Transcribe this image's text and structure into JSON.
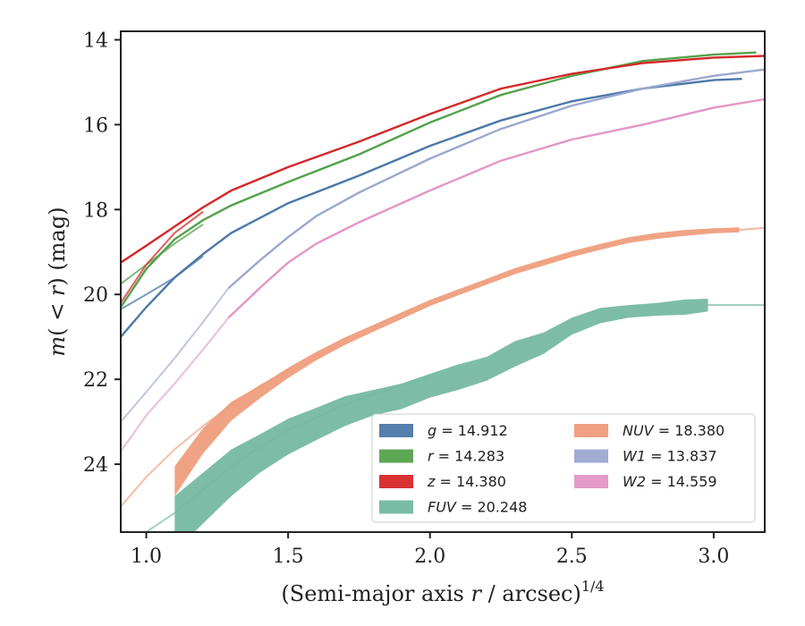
{
  "chart_data": {
    "type": "line",
    "title": "",
    "xlabel_main": "(Semi-major axis ",
    "xlabel_var": "r",
    "xlabel_end": " / arcsec)",
    "xlabel_sup": "1/4",
    "ylabel_m": "m",
    "ylabel_open": "(",
    "ylabel_lt": " < ",
    "ylabel_r": "r",
    "ylabel_close": ")",
    "ylabel_unit": " (mag)",
    "xlim": [
      0.91,
      3.18
    ],
    "ylim": [
      25.6,
      13.8
    ],
    "y_inverted": true,
    "grid": false,
    "legend_position": "bottom-right",
    "xticks": [
      1.0,
      1.5,
      2.0,
      2.5,
      3.0
    ],
    "xtick_labels": [
      "1.0",
      "1.5",
      "2.0",
      "2.5",
      "3.0"
    ],
    "yticks": [
      14,
      16,
      18,
      20,
      22,
      24
    ],
    "ytick_labels": [
      "14",
      "16",
      "18",
      "20",
      "22",
      "24"
    ],
    "series": [
      {
        "name": "g",
        "label_name": "g",
        "label_value": " = 14.912",
        "color": "#4c78a8",
        "band": false,
        "points": [
          [
            0.91,
            21.0
          ],
          [
            1.0,
            20.3
          ],
          [
            1.1,
            19.6
          ],
          [
            1.2,
            19.05
          ],
          [
            1.3,
            18.55
          ],
          [
            1.5,
            17.85
          ],
          [
            1.75,
            17.2
          ],
          [
            2.0,
            16.5
          ],
          [
            2.25,
            15.9
          ],
          [
            2.5,
            15.45
          ],
          [
            2.75,
            15.15
          ],
          [
            3.0,
            14.95
          ],
          [
            3.1,
            14.92
          ]
        ],
        "points2": [
          [
            0.91,
            20.35
          ],
          [
            1.0,
            20.0
          ],
          [
            1.1,
            19.6
          ],
          [
            1.2,
            19.1
          ]
        ]
      },
      {
        "name": "r",
        "label_name": "r",
        "label_value": " = 14.283",
        "color": "#54a24b",
        "band": false,
        "points": [
          [
            0.91,
            20.3
          ],
          [
            1.0,
            19.4
          ],
          [
            1.1,
            18.7
          ],
          [
            1.2,
            18.25
          ],
          [
            1.3,
            17.9
          ],
          [
            1.5,
            17.35
          ],
          [
            1.75,
            16.7
          ],
          [
            2.0,
            15.95
          ],
          [
            2.25,
            15.3
          ],
          [
            2.5,
            14.85
          ],
          [
            2.75,
            14.5
          ],
          [
            3.0,
            14.35
          ],
          [
            3.15,
            14.3
          ]
        ],
        "points2": [
          [
            0.91,
            19.75
          ],
          [
            1.0,
            19.3
          ],
          [
            1.1,
            18.8
          ],
          [
            1.2,
            18.35
          ]
        ]
      },
      {
        "name": "z",
        "label_name": "z",
        "label_value": " = 14.380",
        "color": "#d62728",
        "band": false,
        "points": [
          [
            0.91,
            19.25
          ],
          [
            1.0,
            18.85
          ],
          [
            1.1,
            18.4
          ],
          [
            1.2,
            17.95
          ],
          [
            1.3,
            17.55
          ],
          [
            1.5,
            17.0
          ],
          [
            1.75,
            16.4
          ],
          [
            2.0,
            15.75
          ],
          [
            2.25,
            15.15
          ],
          [
            2.5,
            14.8
          ],
          [
            2.75,
            14.55
          ],
          [
            3.0,
            14.42
          ],
          [
            3.18,
            14.38
          ]
        ],
        "points2": [
          [
            0.91,
            20.2
          ],
          [
            1.0,
            19.3
          ],
          [
            1.1,
            18.55
          ],
          [
            1.2,
            18.05
          ]
        ]
      },
      {
        "name": "FUV",
        "label_name": "FUV",
        "label_value": " = 20.248",
        "color": "#72b7a0",
        "band": true,
        "points": [
          [
            1.1,
            25.4
          ],
          [
            1.2,
            24.8
          ],
          [
            1.3,
            24.2
          ],
          [
            1.4,
            23.75
          ],
          [
            1.5,
            23.35
          ],
          [
            1.6,
            23.05
          ],
          [
            1.7,
            22.75
          ],
          [
            1.8,
            22.55
          ],
          [
            1.9,
            22.4
          ],
          [
            2.0,
            22.15
          ],
          [
            2.1,
            21.95
          ],
          [
            2.2,
            21.75
          ],
          [
            2.3,
            21.4
          ],
          [
            2.4,
            21.15
          ],
          [
            2.5,
            20.75
          ],
          [
            2.6,
            20.5
          ],
          [
            2.7,
            20.4
          ],
          [
            2.8,
            20.35
          ],
          [
            2.9,
            20.3
          ],
          [
            2.98,
            20.25
          ]
        ],
        "halfwidth": [
          0.65,
          0.6,
          0.55,
          0.45,
          0.42,
          0.38,
          0.35,
          0.3,
          0.3,
          0.28,
          0.3,
          0.28,
          0.3,
          0.25,
          0.2,
          0.18,
          0.15,
          0.15,
          0.18,
          0.15
        ],
        "thin": [
          [
            1.0,
            25.6
          ],
          [
            1.1,
            25.15
          ],
          [
            1.2,
            24.6
          ],
          [
            1.3,
            24.05
          ],
          [
            1.4,
            23.6
          ],
          [
            1.5,
            23.2
          ],
          [
            1.6,
            22.9
          ],
          [
            1.7,
            22.6
          ],
          [
            1.8,
            22.35
          ],
          [
            1.9,
            22.15
          ],
          [
            2.0,
            21.95
          ]
        ],
        "tail": [
          [
            2.98,
            20.25
          ],
          [
            3.18,
            20.25
          ]
        ]
      },
      {
        "name": "NUV",
        "label_name": "NUV",
        "label_value": " = 18.380",
        "color": "#ef9b7a",
        "band": true,
        "points": [
          [
            1.1,
            24.4
          ],
          [
            1.2,
            23.45
          ],
          [
            1.3,
            22.75
          ],
          [
            1.4,
            22.3
          ],
          [
            1.5,
            21.85
          ],
          [
            1.6,
            21.45
          ],
          [
            1.7,
            21.1
          ],
          [
            1.8,
            20.8
          ],
          [
            1.9,
            20.5
          ],
          [
            2.0,
            20.2
          ],
          [
            2.1,
            19.95
          ],
          [
            2.2,
            19.7
          ],
          [
            2.3,
            19.45
          ],
          [
            2.4,
            19.25
          ],
          [
            2.5,
            19.05
          ],
          [
            2.6,
            18.88
          ],
          [
            2.7,
            18.72
          ],
          [
            2.8,
            18.62
          ],
          [
            2.9,
            18.55
          ],
          [
            3.0,
            18.5
          ],
          [
            3.09,
            18.48
          ]
        ],
        "halfwidth": [
          0.35,
          0.3,
          0.22,
          0.15,
          0.12,
          0.1,
          0.09,
          0.08,
          0.08,
          0.07,
          0.07,
          0.07,
          0.07,
          0.07,
          0.07,
          0.07,
          0.07,
          0.07,
          0.07,
          0.06,
          0.06
        ],
        "thin": [
          [
            0.91,
            25.0
          ],
          [
            1.0,
            24.3
          ],
          [
            1.1,
            23.65
          ],
          [
            1.2,
            23.1
          ],
          [
            1.3,
            22.6
          ],
          [
            1.4,
            22.15
          ],
          [
            1.5,
            21.8
          ]
        ],
        "tail": [
          [
            3.09,
            18.48
          ],
          [
            3.18,
            18.43
          ]
        ]
      },
      {
        "name": "W1",
        "label_name": "W1",
        "label_value": " = 13.837",
        "color": "#9ba8cf",
        "band": false,
        "points": [
          [
            1.29,
            19.85
          ],
          [
            1.4,
            19.2
          ],
          [
            1.5,
            18.65
          ],
          [
            1.6,
            18.15
          ],
          [
            1.75,
            17.6
          ],
          [
            2.0,
            16.8
          ],
          [
            2.25,
            16.1
          ],
          [
            2.5,
            15.55
          ],
          [
            2.75,
            15.15
          ],
          [
            3.0,
            14.85
          ],
          [
            3.18,
            14.7
          ]
        ],
        "thin": [
          [
            0.91,
            23.0
          ],
          [
            1.0,
            22.3
          ],
          [
            1.1,
            21.5
          ],
          [
            1.2,
            20.65
          ],
          [
            1.29,
            19.85
          ]
        ]
      },
      {
        "name": "W2",
        "label_name": "W2",
        "label_value": " = 14.559",
        "color": "#e396c6",
        "band": false,
        "points": [
          [
            1.29,
            20.55
          ],
          [
            1.4,
            19.85
          ],
          [
            1.5,
            19.25
          ],
          [
            1.6,
            18.8
          ],
          [
            1.75,
            18.3
          ],
          [
            2.0,
            17.55
          ],
          [
            2.25,
            16.85
          ],
          [
            2.5,
            16.35
          ],
          [
            2.75,
            16.0
          ],
          [
            3.0,
            15.6
          ],
          [
            3.18,
            15.4
          ]
        ],
        "thin": [
          [
            0.91,
            23.7
          ],
          [
            1.0,
            22.85
          ],
          [
            1.1,
            22.1
          ],
          [
            1.2,
            21.3
          ],
          [
            1.29,
            20.55
          ]
        ]
      }
    ],
    "legend_order": [
      "g",
      "NUV",
      "r",
      "W1",
      "z",
      "W2",
      "FUV"
    ]
  }
}
